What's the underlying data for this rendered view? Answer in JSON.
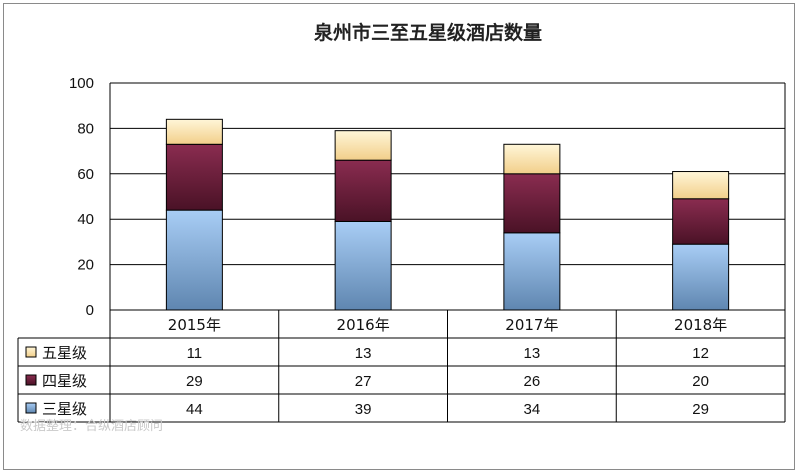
{
  "chart_data": {
    "type": "bar",
    "stacked": true,
    "title": "泉州市三至五星级酒店数量",
    "categories": [
      "2015年",
      "2016年",
      "2017年",
      "2018年"
    ],
    "series": [
      {
        "name": "三星级",
        "values": [
          44,
          39,
          34,
          29
        ],
        "color_top": "#a8cdf5",
        "color_bottom": "#5f86b0"
      },
      {
        "name": "四星级",
        "values": [
          29,
          27,
          26,
          20
        ],
        "color_top": "#8a2c50",
        "color_bottom": "#4a1226"
      },
      {
        "name": "五星级",
        "values": [
          11,
          13,
          13,
          12
        ],
        "color_top": "#fff6d8",
        "color_bottom": "#f2cf8a"
      }
    ],
    "y_ticks": [
      "0",
      "20",
      "40",
      "60",
      "80",
      "100"
    ],
    "ylim": [
      0,
      100
    ],
    "grid": true,
    "data_table": true,
    "table_row_order": [
      "五星级",
      "四星级",
      "三星级"
    ]
  },
  "watermark": "数据整理：合纵酒店顾问"
}
